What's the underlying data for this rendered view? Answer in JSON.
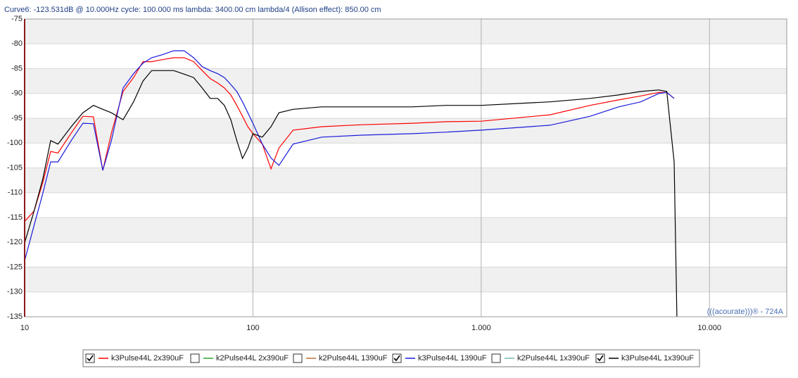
{
  "chart_data": {
    "type": "line",
    "header": "Curve6:  -123.531dB @ 10.000Hz    cycle: 100.000 ms   lambda: 3400.00 cm  lambda/4 (Allison effect): 850.00 cm",
    "watermark": "(((acourate)))® - 724A",
    "xscale": "log",
    "grid": true,
    "xlim": [
      10,
      21800
    ],
    "xticks": [
      10,
      100,
      {
        "value": 1000,
        "label": "1.000"
      },
      {
        "value": 10000,
        "label": "10.000"
      }
    ],
    "ylim": [
      -135,
      -75
    ],
    "yticks": [
      -75,
      -80,
      -85,
      -90,
      -95,
      -100,
      -105,
      -110,
      -115,
      -120,
      -125,
      -130,
      -135
    ],
    "x": [
      10,
      11,
      12,
      13,
      14,
      16,
      18,
      20,
      22,
      24,
      27,
      30,
      33,
      36,
      40,
      45,
      50,
      55,
      60,
      65,
      70,
      75,
      80,
      85,
      90,
      95,
      100,
      110,
      120,
      130,
      150,
      200,
      300,
      500,
      700,
      1000,
      2000,
      3000,
      4000,
      5000,
      6000,
      6500,
      7000,
      7200
    ],
    "series": [
      {
        "name": "k3Pulse44L 2x390uF",
        "color": "#ff0000",
        "checked": true,
        "values": [
          -115.8,
          -113.7,
          -108,
          -101.7,
          -102,
          -98,
          -94.6,
          -94.7,
          -105.5,
          -98,
          -89.6,
          -86.8,
          -83.6,
          -83.6,
          -83.2,
          -82.8,
          -82.8,
          -83.6,
          -85.4,
          -87,
          -87.9,
          -88.9,
          -90.3,
          -92.4,
          -94.6,
          -96.7,
          -98.1,
          -100.2,
          -105.2,
          -101,
          -97.4,
          -96.7,
          -96.3,
          -96,
          -95.7,
          -95.6,
          -94.3,
          -92.4,
          -91.3,
          -90.5,
          -89.8,
          -89.8,
          -91,
          null
        ]
      },
      {
        "name": "k2Pulse44L 2x390uF",
        "color": "#2ca02c",
        "checked": false
      },
      {
        "name": "k2Pulse44L 1390uF",
        "color": "#c0703a",
        "checked": false
      },
      {
        "name": "k3Pulse44L 1390uF",
        "color": "#1a1adc",
        "checked": true,
        "values": [
          -123.7,
          -116.6,
          -110.2,
          -103.8,
          -103.8,
          -99.5,
          -96,
          -96.1,
          -105.5,
          -99.5,
          -88.9,
          -86,
          -83.9,
          -82.8,
          -82.2,
          -81.4,
          -81.4,
          -82.8,
          -84.6,
          -85.4,
          -86,
          -86.8,
          -88.2,
          -89.6,
          -91.7,
          -93.9,
          -96,
          -100.2,
          -103,
          -104.5,
          -100.2,
          -98.8,
          -98.4,
          -98.1,
          -97.8,
          -97.4,
          -96.4,
          -94.6,
          -92.7,
          -91.7,
          -90,
          -89.8,
          -91,
          null
        ]
      },
      {
        "name": "k2Pulse44L 1x390uF",
        "color": "#6fb8b0",
        "checked": false
      },
      {
        "name": "k3Pulse44L 1x390uF",
        "color": "#000000",
        "checked": true,
        "values": [
          -120.1,
          -113.7,
          -107.3,
          -99.5,
          -100.2,
          -96.7,
          -93.9,
          -92.4,
          -93.2,
          -93.9,
          -95.3,
          -91.7,
          -87.5,
          -85.4,
          -85.4,
          -85.4,
          -86.1,
          -86.8,
          -88.9,
          -91,
          -91,
          -92.4,
          -95.3,
          -99.5,
          -103.1,
          -101,
          -98.1,
          -98.8,
          -96.7,
          -93.9,
          -93.2,
          -92.7,
          -92.7,
          -92.7,
          -92.4,
          -92.4,
          -91.7,
          -91,
          -90.3,
          -89.6,
          -89.3,
          -89.6,
          -103.8,
          -135
        ]
      }
    ]
  }
}
